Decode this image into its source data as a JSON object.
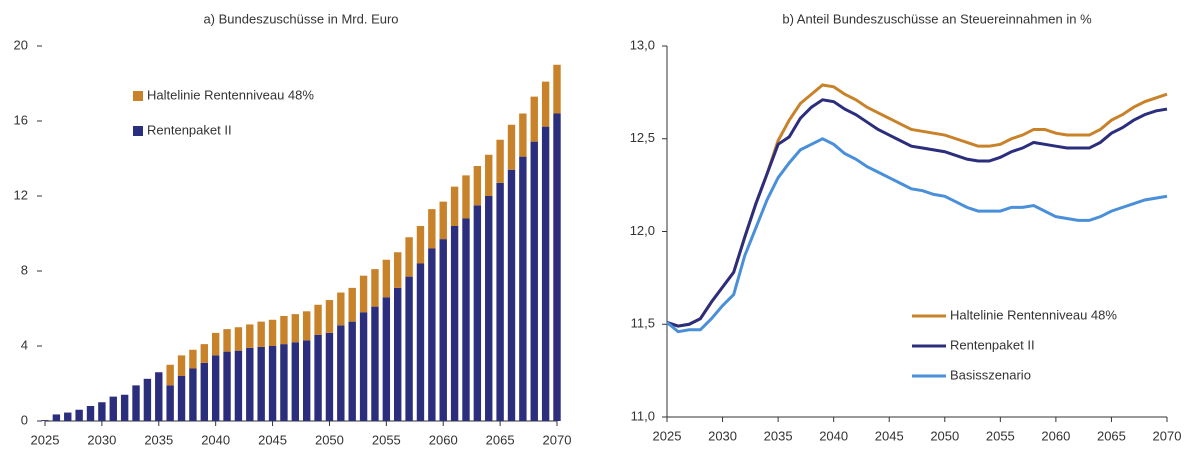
{
  "chart_data": [
    {
      "type": "stacked-bar",
      "title": "a) Bundeszuschüsse in Mrd. Euro",
      "x": [
        2025,
        2026,
        2027,
        2028,
        2029,
        2030,
        2031,
        2032,
        2033,
        2034,
        2035,
        2036,
        2037,
        2038,
        2039,
        2040,
        2041,
        2042,
        2043,
        2044,
        2045,
        2046,
        2047,
        2048,
        2049,
        2050,
        2051,
        2052,
        2053,
        2054,
        2055,
        2056,
        2057,
        2058,
        2059,
        2060,
        2061,
        2062,
        2063,
        2064,
        2065,
        2066,
        2067,
        2068,
        2069,
        2070
      ],
      "series": [
        {
          "name": "Rentenpaket II",
          "color": "#2b2d7d",
          "values": [
            0.05,
            0.35,
            0.45,
            0.6,
            0.8,
            1.0,
            1.3,
            1.4,
            1.9,
            2.25,
            2.6,
            1.9,
            2.4,
            2.8,
            3.1,
            3.5,
            3.7,
            3.75,
            3.9,
            3.95,
            4.0,
            4.1,
            4.2,
            4.3,
            4.6,
            4.7,
            5.1,
            5.3,
            5.8,
            6.1,
            6.6,
            7.1,
            7.7,
            8.4,
            9.2,
            9.7,
            10.4,
            10.8,
            11.5,
            12.0,
            12.7,
            13.4,
            14.1,
            14.9,
            15.7,
            16.4
          ]
        },
        {
          "name": "Haltelinie Rentenniveau 48%",
          "color": "#c8822a",
          "values": [
            null,
            null,
            null,
            null,
            null,
            null,
            null,
            null,
            null,
            null,
            null,
            1.1,
            1.1,
            1.0,
            1.0,
            1.2,
            1.2,
            1.25,
            1.25,
            1.35,
            1.4,
            1.5,
            1.5,
            1.55,
            1.6,
            1.75,
            1.75,
            1.8,
            1.95,
            2.0,
            2.0,
            1.9,
            2.1,
            2.0,
            2.1,
            2.0,
            2.1,
            2.3,
            2.1,
            2.2,
            2.3,
            2.4,
            2.3,
            2.4,
            2.4,
            2.6
          ]
        }
      ],
      "xlim": [
        2025,
        2070
      ],
      "xticks": [
        2025,
        2030,
        2035,
        2040,
        2045,
        2050,
        2055,
        2060,
        2065,
        2070
      ],
      "ylim": [
        0,
        20
      ],
      "yticks": [
        0,
        4,
        8,
        12,
        16,
        20
      ],
      "grid": false,
      "legend": "upper left"
    },
    {
      "type": "line",
      "title": "b) Anteil Bundeszuschüsse an Steuereinnahmen in %",
      "x": [
        2025,
        2026,
        2027,
        2028,
        2029,
        2030,
        2031,
        2032,
        2033,
        2034,
        2035,
        2036,
        2037,
        2038,
        2039,
        2040,
        2041,
        2042,
        2043,
        2044,
        2045,
        2046,
        2047,
        2048,
        2049,
        2050,
        2051,
        2052,
        2053,
        2054,
        2055,
        2056,
        2057,
        2058,
        2059,
        2060,
        2061,
        2062,
        2063,
        2064,
        2065,
        2066,
        2067,
        2068,
        2069,
        2070
      ],
      "series": [
        {
          "name": "Haltelinie Rentenniveau 48%",
          "color": "#c8822a",
          "values": [
            11.51,
            11.49,
            11.5,
            11.53,
            11.62,
            11.7,
            11.78,
            11.97,
            12.15,
            12.31,
            12.49,
            12.6,
            12.69,
            12.74,
            12.79,
            12.78,
            12.74,
            12.71,
            12.67,
            12.64,
            12.61,
            12.58,
            12.55,
            12.54,
            12.53,
            12.52,
            12.5,
            12.48,
            12.46,
            12.46,
            12.47,
            12.5,
            12.52,
            12.55,
            12.55,
            12.53,
            12.52,
            12.52,
            12.52,
            12.55,
            12.6,
            12.63,
            12.67,
            12.7,
            12.72,
            12.74
          ]
        },
        {
          "name": "Rentenpaket II",
          "color": "#2b2d7d",
          "values": [
            11.51,
            11.49,
            11.5,
            11.53,
            11.62,
            11.7,
            11.78,
            11.97,
            12.15,
            12.31,
            12.47,
            12.51,
            12.61,
            12.67,
            12.71,
            12.7,
            12.66,
            12.63,
            12.59,
            12.55,
            12.52,
            12.49,
            12.46,
            12.45,
            12.44,
            12.43,
            12.41,
            12.39,
            12.38,
            12.38,
            12.4,
            12.43,
            12.45,
            12.48,
            12.47,
            12.46,
            12.45,
            12.45,
            12.45,
            12.48,
            12.53,
            12.56,
            12.6,
            12.63,
            12.65,
            12.66
          ]
        },
        {
          "name": "Basisszenario",
          "color": "#4a8fd9",
          "values": [
            11.51,
            11.46,
            11.47,
            11.47,
            11.53,
            11.6,
            11.66,
            11.87,
            12.02,
            12.17,
            12.29,
            12.37,
            12.44,
            12.47,
            12.5,
            12.47,
            12.42,
            12.39,
            12.35,
            12.32,
            12.29,
            12.26,
            12.23,
            12.22,
            12.2,
            12.19,
            12.16,
            12.13,
            12.11,
            12.11,
            12.11,
            12.13,
            12.13,
            12.14,
            12.11,
            12.08,
            12.07,
            12.06,
            12.06,
            12.08,
            12.11,
            12.13,
            12.15,
            12.17,
            12.18,
            12.19
          ]
        }
      ],
      "xlim": [
        2025,
        2070
      ],
      "xticks": [
        2025,
        2030,
        2035,
        2040,
        2045,
        2050,
        2055,
        2060,
        2065,
        2070
      ],
      "ylim": [
        11.0,
        13.0
      ],
      "yticks": [
        {
          "value": 11.0,
          "label": "11,0"
        },
        {
          "value": 11.5,
          "label": "11,5"
        },
        {
          "value": 12.0,
          "label": "12,0"
        },
        {
          "value": 12.5,
          "label": "12,5"
        },
        {
          "value": 13.0,
          "label": "13,0"
        }
      ],
      "grid": false,
      "legend": "lower right"
    }
  ]
}
